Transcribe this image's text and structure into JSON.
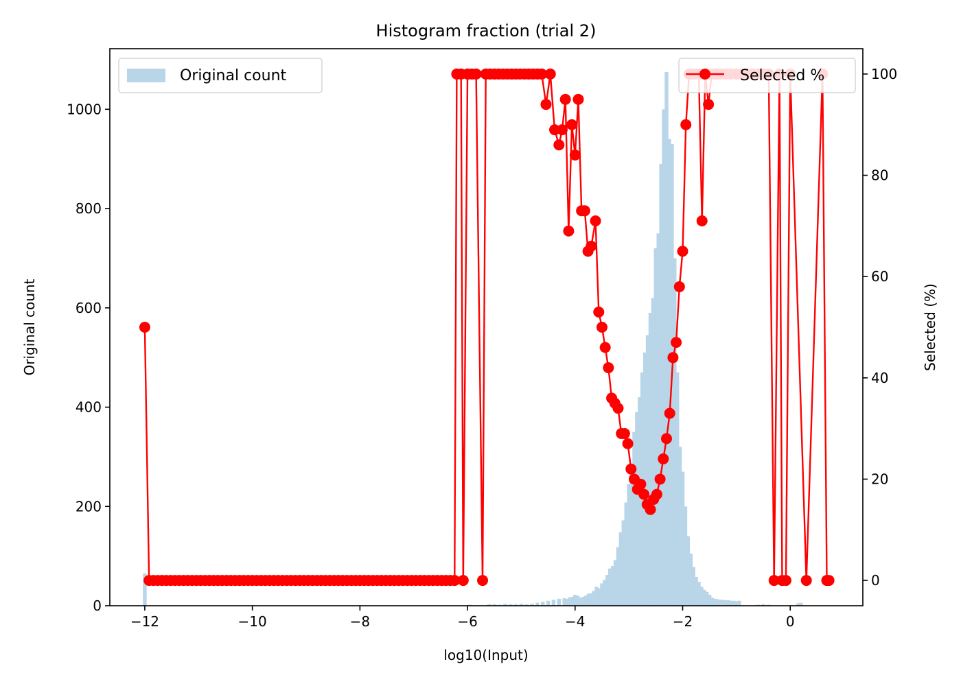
{
  "chart_data": {
    "type": "bar+line",
    "title": "Histogram fraction (trial 2)",
    "xlabel": "log10(Input)",
    "ylabel_left": "Original count",
    "ylabel_right": "Selected (%)",
    "xlim": [
      -12.65,
      1.35
    ],
    "ylim_left": [
      0,
      1122
    ],
    "ylim_right": [
      -5,
      105
    ],
    "xticks": [
      -12,
      -10,
      -8,
      -6,
      -4,
      -2,
      0
    ],
    "xtick_labels": [
      "−12",
      "−10",
      "−8",
      "−6",
      "−4",
      "−2",
      "0"
    ],
    "yticks_left": [
      0,
      200,
      400,
      600,
      800,
      1000
    ],
    "yticks_right": [
      0,
      20,
      40,
      60,
      80,
      100
    ],
    "grid": false,
    "legend_left": {
      "placement": "upper-left",
      "label": "Original count"
    },
    "legend_right": {
      "placement": "upper-right",
      "label": "Selected %"
    },
    "colors": {
      "bars": "#b9d5e8",
      "line": "#ff0000",
      "axes": "#000000"
    },
    "histogram": {
      "name": "Original count",
      "bin_width": 0.07,
      "bins": [
        [
          -12.0,
          65
        ],
        [
          -5.95,
          2
        ],
        [
          -5.85,
          1
        ],
        [
          -5.6,
          3
        ],
        [
          -5.5,
          3
        ],
        [
          -5.4,
          2
        ],
        [
          -5.3,
          4
        ],
        [
          -5.2,
          3
        ],
        [
          -5.1,
          3
        ],
        [
          -5.0,
          4
        ],
        [
          -4.9,
          3
        ],
        [
          -4.8,
          4
        ],
        [
          -4.7,
          6
        ],
        [
          -4.6,
          8
        ],
        [
          -4.5,
          10
        ],
        [
          -4.4,
          12
        ],
        [
          -4.3,
          14
        ],
        [
          -4.2,
          15
        ],
        [
          -4.15,
          14
        ],
        [
          -4.1,
          17
        ],
        [
          -4.05,
          18
        ],
        [
          -4.0,
          22
        ],
        [
          -3.95,
          20
        ],
        [
          -3.9,
          16
        ],
        [
          -3.85,
          18
        ],
        [
          -3.8,
          20
        ],
        [
          -3.75,
          24
        ],
        [
          -3.7,
          25
        ],
        [
          -3.65,
          30
        ],
        [
          -3.6,
          38
        ],
        [
          -3.55,
          35
        ],
        [
          -3.5,
          45
        ],
        [
          -3.45,
          52
        ],
        [
          -3.4,
          62
        ],
        [
          -3.35,
          75
        ],
        [
          -3.3,
          80
        ],
        [
          -3.25,
          92
        ],
        [
          -3.2,
          118
        ],
        [
          -3.15,
          148
        ],
        [
          -3.1,
          172
        ],
        [
          -3.05,
          208
        ],
        [
          -3.0,
          245
        ],
        [
          -2.95,
          280
        ],
        [
          -2.9,
          350
        ],
        [
          -2.85,
          390
        ],
        [
          -2.8,
          420
        ],
        [
          -2.75,
          470
        ],
        [
          -2.7,
          510
        ],
        [
          -2.65,
          545
        ],
        [
          -2.6,
          590
        ],
        [
          -2.55,
          620
        ],
        [
          -2.5,
          720
        ],
        [
          -2.45,
          750
        ],
        [
          -2.4,
          890
        ],
        [
          -2.35,
          1000
        ],
        [
          -2.3,
          1075
        ],
        [
          -2.25,
          940
        ],
        [
          -2.2,
          930
        ],
        [
          -2.15,
          700
        ],
        [
          -2.1,
          470
        ],
        [
          -2.05,
          320
        ],
        [
          -2.0,
          270
        ],
        [
          -1.95,
          200
        ],
        [
          -1.9,
          140
        ],
        [
          -1.85,
          105
        ],
        [
          -1.8,
          78
        ],
        [
          -1.75,
          58
        ],
        [
          -1.7,
          48
        ],
        [
          -1.65,
          38
        ],
        [
          -1.6,
          32
        ],
        [
          -1.55,
          28
        ],
        [
          -1.5,
          22
        ],
        [
          -1.45,
          16
        ],
        [
          -1.4,
          14
        ],
        [
          -1.35,
          13
        ],
        [
          -1.3,
          12
        ],
        [
          -1.25,
          12
        ],
        [
          -1.2,
          11
        ],
        [
          -1.15,
          11
        ],
        [
          -1.1,
          10
        ],
        [
          -1.05,
          10
        ],
        [
          -1.0,
          9
        ],
        [
          -0.95,
          10
        ],
        [
          -0.6,
          2
        ],
        [
          -0.5,
          3
        ],
        [
          -0.4,
          2
        ],
        [
          0.15,
          5
        ],
        [
          0.2,
          6
        ]
      ]
    },
    "series": [
      {
        "name": "Selected %",
        "x": [
          -12.0,
          -11.92,
          -11.84,
          -11.76,
          -11.68,
          -11.6,
          -11.52,
          -11.44,
          -11.36,
          -11.28,
          -11.2,
          -11.12,
          -11.04,
          -10.96,
          -10.88,
          -10.8,
          -10.72,
          -10.64,
          -10.56,
          -10.48,
          -10.4,
          -10.32,
          -10.24,
          -10.16,
          -10.08,
          -10.0,
          -9.92,
          -9.84,
          -9.76,
          -9.68,
          -9.6,
          -9.52,
          -9.44,
          -9.36,
          -9.28,
          -9.2,
          -9.12,
          -9.04,
          -8.96,
          -8.88,
          -8.8,
          -8.72,
          -8.64,
          -8.56,
          -8.48,
          -8.4,
          -8.32,
          -8.24,
          -8.16,
          -8.08,
          -8.0,
          -7.92,
          -7.84,
          -7.76,
          -7.68,
          -7.6,
          -7.52,
          -7.44,
          -7.36,
          -7.28,
          -7.2,
          -7.12,
          -7.04,
          -6.96,
          -6.88,
          -6.8,
          -6.72,
          -6.64,
          -6.56,
          -6.48,
          -6.4,
          -6.32,
          -6.24,
          -6.2,
          -6.12,
          -6.08,
          -6.0,
          -5.92,
          -5.84,
          -5.72,
          -5.66,
          -5.58,
          -5.5,
          -5.42,
          -5.34,
          -5.26,
          -5.18,
          -5.1,
          -5.02,
          -4.94,
          -4.86,
          -4.78,
          -4.7,
          -4.62,
          -4.54,
          -4.46,
          -4.38,
          -4.3,
          -4.24,
          -4.18,
          -4.12,
          -4.06,
          -4.0,
          -3.94,
          -3.88,
          -3.82,
          -3.76,
          -3.7,
          -3.62,
          -3.56,
          -3.5,
          -3.44,
          -3.38,
          -3.32,
          -3.26,
          -3.2,
          -3.14,
          -3.08,
          -3.02,
          -2.96,
          -2.9,
          -2.84,
          -2.78,
          -2.72,
          -2.66,
          -2.6,
          -2.54,
          -2.48,
          -2.42,
          -2.36,
          -2.3,
          -2.24,
          -2.18,
          -2.12,
          -2.06,
          -2.0,
          -1.94,
          -1.88,
          -1.82,
          -1.76,
          -1.7,
          -1.64,
          -1.58,
          -1.52,
          -1.46,
          -1.4,
          -1.34,
          -1.28,
          -1.2,
          -1.1,
          -1.0,
          -0.9,
          -0.8,
          -0.7,
          -0.6,
          -0.5,
          -0.4,
          -0.3,
          -0.2,
          -0.15,
          -0.08,
          0.0,
          0.3,
          0.6,
          0.68,
          0.72
        ],
        "values": [
          50,
          0,
          0,
          0,
          0,
          0,
          0,
          0,
          0,
          0,
          0,
          0,
          0,
          0,
          0,
          0,
          0,
          0,
          0,
          0,
          0,
          0,
          0,
          0,
          0,
          0,
          0,
          0,
          0,
          0,
          0,
          0,
          0,
          0,
          0,
          0,
          0,
          0,
          0,
          0,
          0,
          0,
          0,
          0,
          0,
          0,
          0,
          0,
          0,
          0,
          0,
          0,
          0,
          0,
          0,
          0,
          0,
          0,
          0,
          0,
          0,
          0,
          0,
          0,
          0,
          0,
          0,
          0,
          0,
          0,
          0,
          0,
          0,
          100,
          100,
          0,
          100,
          100,
          100,
          0,
          100,
          100,
          100,
          100,
          100,
          100,
          100,
          100,
          100,
          100,
          100,
          100,
          100,
          100,
          94,
          100,
          89,
          86,
          89,
          95,
          69,
          90,
          84,
          95,
          73,
          73,
          65,
          66,
          71,
          53,
          50,
          46,
          42,
          36,
          35,
          34,
          29,
          29,
          27,
          22,
          20,
          18,
          19,
          17,
          15,
          14,
          16,
          17,
          20,
          24,
          28,
          33,
          44,
          47,
          58,
          65,
          90,
          100,
          100,
          100,
          100,
          71,
          100,
          94,
          100,
          100,
          100,
          100,
          100,
          100,
          100,
          100,
          100,
          100,
          100,
          100,
          100,
          0,
          100,
          0,
          0,
          100,
          0,
          100,
          0,
          0
        ]
      }
    ]
  }
}
